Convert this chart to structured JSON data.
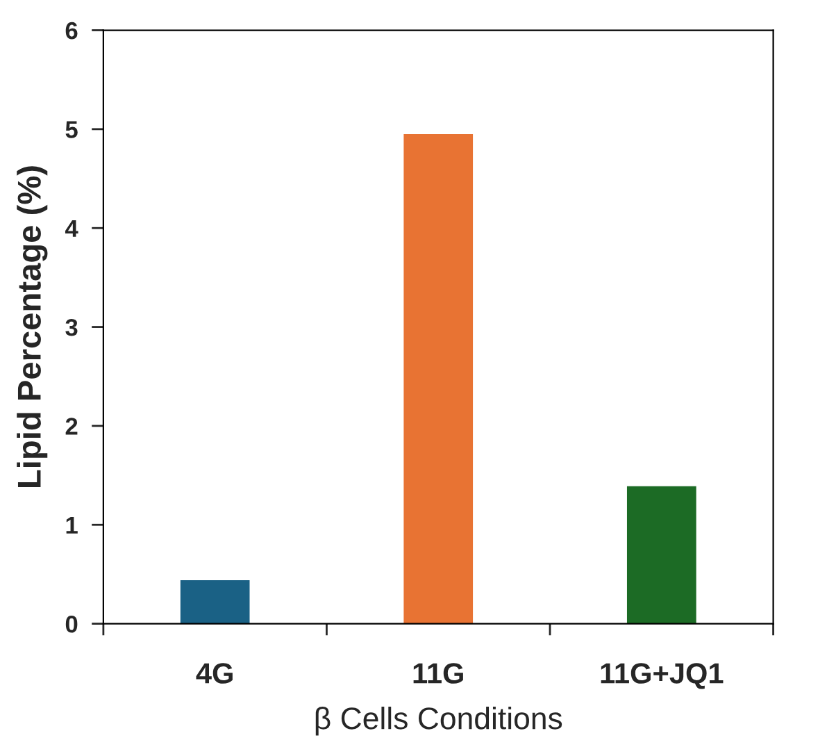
{
  "chart_data": {
    "type": "bar",
    "xlabel": "β Cells Conditions",
    "ylabel": "Lipid Percentage (%)",
    "categories": [
      "4G",
      "11G",
      "11G+JQ1"
    ],
    "values": [
      0.44,
      4.95,
      1.39
    ],
    "colors": [
      "#1a6185",
      "#e87333",
      "#1c6b25"
    ],
    "ylim": [
      0,
      6
    ],
    "yticks": [
      0,
      1,
      2,
      3,
      4,
      5,
      6
    ],
    "grid": false,
    "legend": false
  }
}
